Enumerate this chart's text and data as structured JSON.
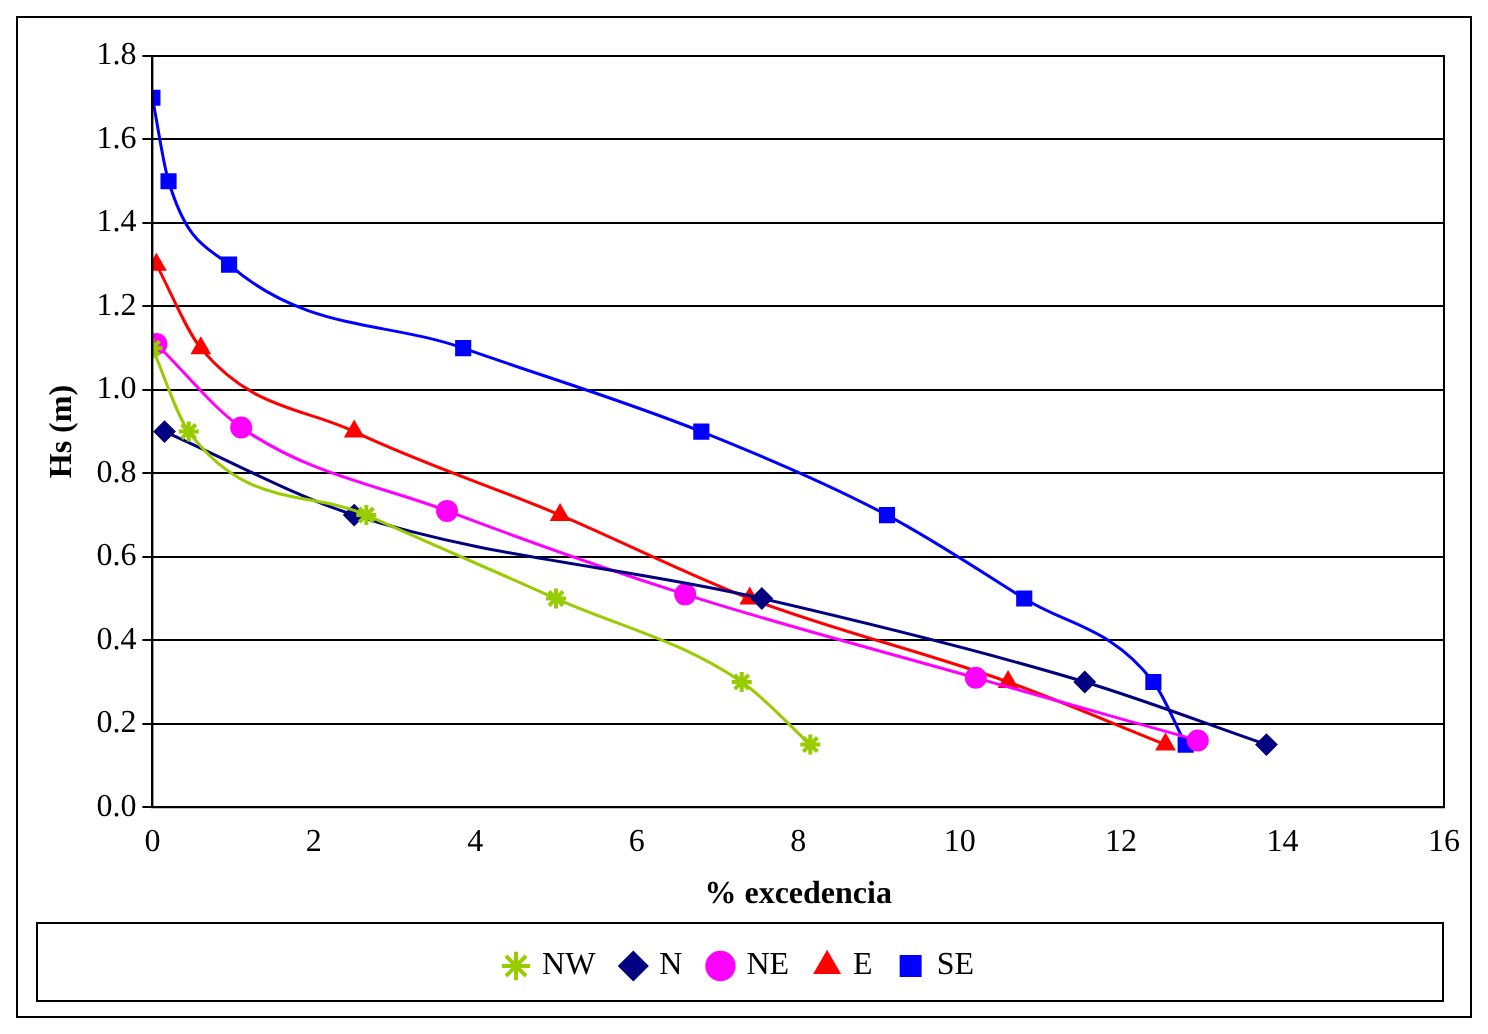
{
  "chart_data": {
    "type": "line",
    "xlabel": "% excedencia",
    "ylabel": "Hs (m)",
    "xlim": [
      0,
      16
    ],
    "xticks": [
      0,
      2,
      4,
      6,
      8,
      10,
      12,
      14,
      16
    ],
    "ylim": [
      0,
      1.8
    ],
    "yticks": [
      {
        "value": 0,
        "label": "0.0"
      },
      0.2,
      0.4,
      0.6,
      0.8,
      {
        "value": 1,
        "label": "1.0"
      },
      1.2,
      1.4,
      1.6,
      1.8
    ],
    "grid": "y",
    "legend": "bottom",
    "series": [
      {
        "name": "NW",
        "color": "#99cc00",
        "marker": "cross",
        "x": [
          0,
          0.45,
          2.65,
          5.0,
          7.3,
          8.15
        ],
        "values": [
          1.1,
          0.9,
          0.7,
          0.5,
          0.3,
          0.15
        ]
      },
      {
        "name": "N",
        "color": "#000080",
        "marker": "diamond",
        "x": [
          0.15,
          2.5,
          7.55,
          11.55,
          13.8
        ],
        "values": [
          0.9,
          0.7,
          0.5,
          0.3,
          0.15
        ]
      },
      {
        "name": "NE",
        "color": "#ff00ff",
        "marker": "circle",
        "x": [
          0.05,
          1.1,
          3.65,
          6.6,
          10.2,
          12.95
        ],
        "values": [
          1.11,
          0.91,
          0.71,
          0.51,
          0.31,
          0.16
        ]
      },
      {
        "name": "E",
        "color": "#ff0000",
        "marker": "triangle",
        "x": [
          0.05,
          0.6,
          2.5,
          5.05,
          7.4,
          10.6,
          12.55
        ],
        "values": [
          1.3,
          1.1,
          0.9,
          0.7,
          0.5,
          0.3,
          0.15
        ]
      },
      {
        "name": "SE",
        "color": "#0000ff",
        "marker": "square",
        "x": [
          0,
          0.2,
          0.95,
          3.85,
          6.8,
          9.1,
          10.8,
          12.4,
          12.8
        ],
        "values": [
          1.7,
          1.5,
          1.3,
          1.1,
          0.9,
          0.7,
          0.5,
          0.3,
          0.15
        ]
      }
    ]
  }
}
